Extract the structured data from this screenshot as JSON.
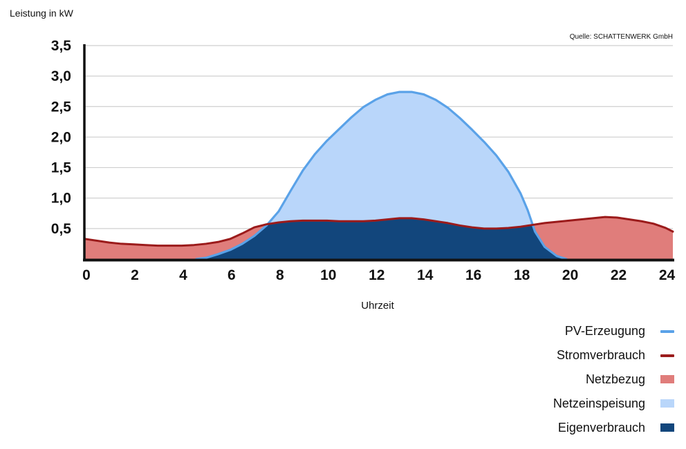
{
  "chart_data": {
    "type": "area",
    "title": "",
    "ylabel": "Leistung in kW",
    "xlabel": "Uhrzeit",
    "source": "Quelle: SCHATTENWERK GmbH",
    "xlim": [
      0,
      24.3
    ],
    "ylim": [
      0,
      3.5
    ],
    "x_ticks": [
      0,
      2,
      4,
      6,
      8,
      10,
      12,
      14,
      16,
      18,
      20,
      22,
      24
    ],
    "x_tick_labels": [
      "0",
      "2",
      "4",
      "6",
      "8",
      "10",
      "12",
      "14",
      "16",
      "18",
      "20",
      "22",
      "24"
    ],
    "y_ticks": [
      0.5,
      1.0,
      1.5,
      2.0,
      2.5,
      3.0,
      3.5
    ],
    "y_tick_labels": [
      "0,5",
      "1,0",
      "1,5",
      "2,0",
      "2,5",
      "3,0",
      "3,5"
    ],
    "grid": true,
    "series": [
      {
        "name": "PV-Erzeugung",
        "kind": "line",
        "color": "#5aa2e8",
        "x": [
          4.6,
          5.0,
          5.5,
          6.0,
          6.5,
          7.0,
          7.5,
          8.0,
          8.5,
          9.0,
          9.5,
          10.0,
          10.5,
          11.0,
          11.5,
          12.0,
          12.5,
          13.0,
          13.5,
          14.0,
          14.5,
          15.0,
          15.5,
          16.0,
          16.5,
          17.0,
          17.5,
          18.0,
          18.3,
          18.6,
          19.0,
          19.5,
          19.9
        ],
        "values": [
          0.0,
          0.02,
          0.08,
          0.15,
          0.25,
          0.38,
          0.55,
          0.78,
          1.12,
          1.45,
          1.72,
          1.94,
          2.13,
          2.32,
          2.49,
          2.61,
          2.7,
          2.74,
          2.74,
          2.7,
          2.61,
          2.48,
          2.31,
          2.12,
          1.92,
          1.7,
          1.43,
          1.08,
          0.8,
          0.45,
          0.2,
          0.05,
          0.0
        ]
      },
      {
        "name": "Stromverbrauch",
        "kind": "line",
        "color": "#9b1b1b",
        "x": [
          0,
          0.5,
          1.0,
          1.5,
          2.0,
          2.5,
          3.0,
          3.5,
          4.0,
          4.5,
          5.0,
          5.5,
          6.0,
          6.5,
          7.0,
          7.5,
          8.0,
          8.5,
          9.0,
          9.5,
          10.0,
          10.5,
          11.0,
          11.5,
          12.0,
          12.5,
          13.0,
          13.5,
          14.0,
          14.5,
          15.0,
          15.5,
          16.0,
          16.5,
          17.0,
          17.5,
          18.0,
          18.5,
          19.0,
          19.5,
          20.0,
          20.5,
          21.0,
          21.5,
          22.0,
          22.5,
          23.0,
          23.5,
          24.0,
          24.3
        ],
        "values": [
          0.33,
          0.3,
          0.27,
          0.25,
          0.24,
          0.23,
          0.22,
          0.22,
          0.22,
          0.23,
          0.25,
          0.28,
          0.33,
          0.42,
          0.52,
          0.57,
          0.6,
          0.62,
          0.63,
          0.63,
          0.63,
          0.62,
          0.62,
          0.62,
          0.63,
          0.65,
          0.67,
          0.67,
          0.65,
          0.62,
          0.59,
          0.55,
          0.52,
          0.5,
          0.5,
          0.51,
          0.53,
          0.56,
          0.59,
          0.61,
          0.63,
          0.65,
          0.67,
          0.69,
          0.68,
          0.65,
          0.62,
          0.58,
          0.51,
          0.45
        ]
      },
      {
        "name": "Netzbezug",
        "kind": "area",
        "color": "#e07d7b"
      },
      {
        "name": "Netzeinspeisung",
        "kind": "area",
        "color": "#b9d6fa"
      },
      {
        "name": "Eigenverbrauch",
        "kind": "area",
        "color": "#12467c"
      }
    ],
    "legend": {
      "placement": "bottom-right",
      "entries": [
        {
          "label": "PV-Erzeugung",
          "symbol": "line",
          "color": "#5aa2e8"
        },
        {
          "label": "Stromverbrauch",
          "symbol": "line",
          "color": "#9b1b1b"
        },
        {
          "label": "Netzbezug",
          "symbol": "box",
          "color": "#e07d7b"
        },
        {
          "label": "Netzeinspeisung",
          "symbol": "box",
          "color": "#b9d6fa"
        },
        {
          "label": "Eigenverbrauch",
          "symbol": "box",
          "color": "#12467c"
        }
      ]
    }
  }
}
